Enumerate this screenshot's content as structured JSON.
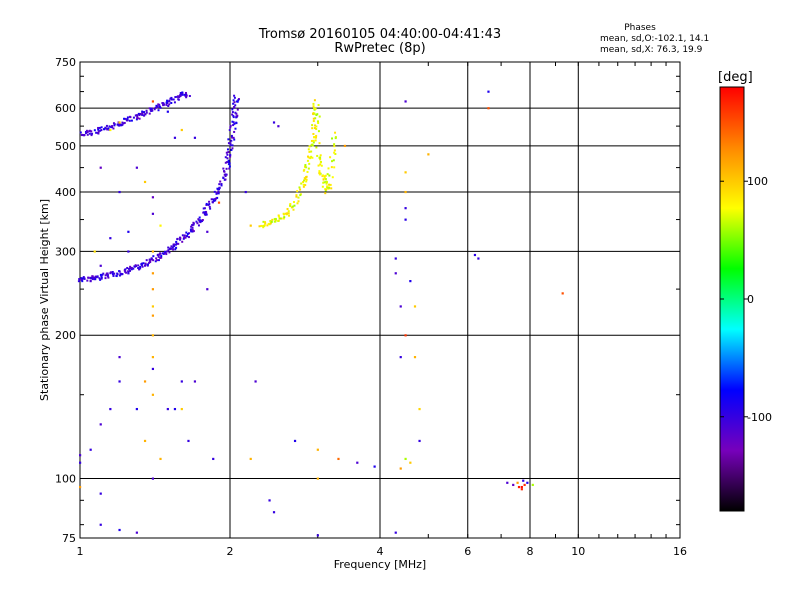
{
  "header": {
    "title_line1": "Tromsø 20160105 04:40:00-04:41:43",
    "title_line2": "RwPretec (8p)",
    "stats_heading": "Phases",
    "stats_o": "mean, sd,O:-102.1, 14.1",
    "stats_x": "mean, sd,X:  76.3, 19.9"
  },
  "chart_data": {
    "type": "scatter",
    "xlabel": "Frequency [MHz]",
    "ylabel": "Stationary phase Virtual Height [km]",
    "x_scale": "log",
    "y_scale": "log",
    "xlim": [
      1,
      16
    ],
    "ylim": [
      75,
      750
    ],
    "x_ticks": [
      1,
      2,
      4,
      6,
      8,
      10,
      16
    ],
    "x_tick_labels": [
      "1",
      "2",
      "4",
      "6",
      "8",
      "10",
      "16"
    ],
    "y_ticks": [
      75,
      100,
      200,
      300,
      400,
      500,
      600,
      750
    ],
    "y_tick_labels": [
      "75",
      "100",
      "200",
      "300",
      "400",
      "500",
      "600",
      "750"
    ],
    "grid": true,
    "colorbar": {
      "label": "[deg]",
      "range": [
        -180,
        180
      ],
      "ticks": [
        100,
        0,
        -100
      ],
      "tick_labels": [
        "100",
        "0",
        "-100"
      ],
      "colors": [
        "#000000",
        "#7700bb",
        "#0000ff",
        "#00ffff",
        "#00ff00",
        "#ffff00",
        "#ff8800",
        "#ff0000"
      ]
    },
    "traces": [
      {
        "mode": "O",
        "phase_mean": -102.1,
        "points": [
          [
            1.0,
            262
          ],
          [
            1.04,
            263
          ],
          [
            1.08,
            264
          ],
          [
            1.12,
            266
          ],
          [
            1.16,
            268
          ],
          [
            1.2,
            270
          ],
          [
            1.25,
            274
          ],
          [
            1.3,
            278
          ],
          [
            1.35,
            282
          ],
          [
            1.4,
            288
          ],
          [
            1.45,
            293
          ],
          [
            1.5,
            300
          ],
          [
            1.55,
            308
          ],
          [
            1.6,
            318
          ],
          [
            1.65,
            328
          ],
          [
            1.7,
            340
          ],
          [
            1.75,
            352
          ],
          [
            1.8,
            368
          ],
          [
            1.85,
            385
          ],
          [
            1.9,
            405
          ],
          [
            1.95,
            430
          ],
          [
            1.98,
            460
          ],
          [
            2.0,
            490
          ],
          [
            2.02,
            530
          ],
          [
            2.04,
            570
          ],
          [
            2.05,
            600
          ],
          [
            2.06,
            640
          ]
        ]
      },
      {
        "mode": "O",
        "phase_mean": -102.1,
        "points": [
          [
            1.0,
            530
          ],
          [
            1.05,
            532
          ],
          [
            1.1,
            540
          ],
          [
            1.15,
            548
          ],
          [
            1.2,
            556
          ],
          [
            1.25,
            565
          ],
          [
            1.3,
            575
          ],
          [
            1.35,
            585
          ],
          [
            1.4,
            596
          ],
          [
            1.45,
            606
          ],
          [
            1.5,
            616
          ],
          [
            1.55,
            626
          ],
          [
            1.6,
            636
          ],
          [
            1.65,
            645
          ]
        ]
      },
      {
        "mode": "X",
        "phase_mean": 76.3,
        "points": [
          [
            2.3,
            340
          ],
          [
            2.4,
            344
          ],
          [
            2.5,
            350
          ],
          [
            2.6,
            360
          ],
          [
            2.7,
            380
          ],
          [
            2.8,
            410
          ],
          [
            2.85,
            440
          ],
          [
            2.9,
            480
          ],
          [
            2.95,
            520
          ],
          [
            2.97,
            570
          ],
          [
            2.98,
            620
          ],
          [
            3.0,
            480
          ],
          [
            3.05,
            440
          ],
          [
            3.1,
            420
          ],
          [
            3.15,
            400
          ],
          [
            3.2,
            460
          ],
          [
            3.25,
            540
          ]
        ]
      }
    ],
    "scatter_points": [
      [
        4.5,
        620,
        -110
      ],
      [
        6.6,
        650,
        -90
      ],
      [
        6.6,
        600,
        150
      ],
      [
        5.0,
        480,
        110
      ],
      [
        3.4,
        500,
        120
      ],
      [
        4.5,
        440,
        100
      ],
      [
        4.5,
        400,
        110
      ],
      [
        4.5,
        370,
        -100
      ],
      [
        4.5,
        350,
        -95
      ],
      [
        4.3,
        290,
        -100
      ],
      [
        4.3,
        270,
        -110
      ],
      [
        4.6,
        260,
        -90
      ],
      [
        4.4,
        230,
        -110
      ],
      [
        4.7,
        230,
        100
      ],
      [
        4.5,
        200,
        160
      ],
      [
        4.4,
        180,
        -100
      ],
      [
        4.7,
        180,
        110
      ],
      [
        4.8,
        140,
        95
      ],
      [
        4.8,
        120,
        -100
      ],
      [
        4.5,
        110,
        60
      ],
      [
        4.6,
        108,
        100
      ],
      [
        4.4,
        105,
        120
      ],
      [
        6.2,
        295,
        -95
      ],
      [
        6.3,
        290,
        -100
      ],
      [
        9.3,
        245,
        150
      ],
      [
        1.1,
        450,
        -120
      ],
      [
        1.2,
        400,
        -100
      ],
      [
        1.3,
        450,
        -110
      ],
      [
        1.35,
        420,
        100
      ],
      [
        1.4,
        390,
        -120
      ],
      [
        1.4,
        360,
        -110
      ],
      [
        1.45,
        340,
        80
      ],
      [
        1.4,
        300,
        110
      ],
      [
        1.4,
        270,
        120
      ],
      [
        1.4,
        250,
        120
      ],
      [
        1.4,
        230,
        100
      ],
      [
        1.4,
        220,
        120
      ],
      [
        1.4,
        200,
        110
      ],
      [
        1.4,
        180,
        110
      ],
      [
        1.4,
        170,
        -100
      ],
      [
        1.35,
        160,
        120
      ],
      [
        1.4,
        150,
        110
      ],
      [
        1.2,
        180,
        -110
      ],
      [
        1.2,
        160,
        -100
      ],
      [
        1.3,
        140,
        -90
      ],
      [
        1.15,
        140,
        -100
      ],
      [
        1.1,
        130,
        -110
      ],
      [
        1.05,
        115,
        -100
      ],
      [
        1.0,
        112,
        -110
      ],
      [
        1.0,
        108,
        -100
      ],
      [
        1.35,
        120,
        110
      ],
      [
        1.45,
        110,
        110
      ],
      [
        1.4,
        100,
        -110
      ],
      [
        1.5,
        140,
        -100
      ],
      [
        1.55,
        140,
        -90
      ],
      [
        1.6,
        160,
        -100
      ],
      [
        1.7,
        160,
        -110
      ],
      [
        1.65,
        120,
        -100
      ],
      [
        2.2,
        110,
        110
      ],
      [
        2.25,
        160,
        -110
      ],
      [
        2.4,
        90,
        -100
      ],
      [
        2.45,
        85,
        -100
      ],
      [
        2.7,
        120,
        -90
      ],
      [
        3.0,
        115,
        110
      ],
      [
        3.0,
        100,
        110
      ],
      [
        3.0,
        76,
        -100
      ],
      [
        3.3,
        110,
        140
      ],
      [
        3.6,
        108,
        -110
      ],
      [
        3.9,
        106,
        -90
      ],
      [
        4.3,
        77,
        -100
      ],
      [
        1.0,
        96,
        120
      ],
      [
        1.1,
        93,
        -100
      ],
      [
        1.1,
        80,
        -100
      ],
      [
        1.2,
        78,
        -90
      ],
      [
        1.3,
        77,
        -110
      ],
      [
        1.6,
        140,
        100
      ],
      [
        1.85,
        110,
        -100
      ],
      [
        1.9,
        380,
        150
      ],
      [
        1.8,
        330,
        -110
      ],
      [
        7.2,
        98,
        -110
      ],
      [
        7.4,
        97,
        -120
      ],
      [
        7.6,
        96,
        170
      ],
      [
        7.7,
        96,
        175
      ],
      [
        7.8,
        97,
        160
      ],
      [
        7.7,
        95,
        165
      ],
      [
        7.9,
        98,
        -90
      ],
      [
        8.1,
        97,
        60
      ],
      [
        7.75,
        99,
        -100
      ],
      [
        7.55,
        98,
        120
      ],
      [
        1.4,
        620,
        150
      ],
      [
        1.5,
        590,
        -90
      ],
      [
        1.6,
        540,
        100
      ],
      [
        1.55,
        520,
        -100
      ],
      [
        1.7,
        520,
        -100
      ],
      [
        1.2,
        560,
        100
      ],
      [
        1.15,
        540,
        80
      ],
      [
        1.3,
        580,
        -110
      ],
      [
        2.45,
        560,
        -100
      ],
      [
        2.5,
        550,
        -110
      ],
      [
        2.2,
        340,
        100
      ],
      [
        2.15,
        400,
        -100
      ],
      [
        1.8,
        250,
        -110
      ],
      [
        1.25,
        300,
        -100
      ],
      [
        1.25,
        270,
        -100
      ],
      [
        1.05,
        260,
        -110
      ],
      [
        1.07,
        300,
        90
      ],
      [
        1.1,
        280,
        -110
      ],
      [
        1.15,
        320,
        -100
      ],
      [
        1.25,
        330,
        -90
      ]
    ]
  }
}
